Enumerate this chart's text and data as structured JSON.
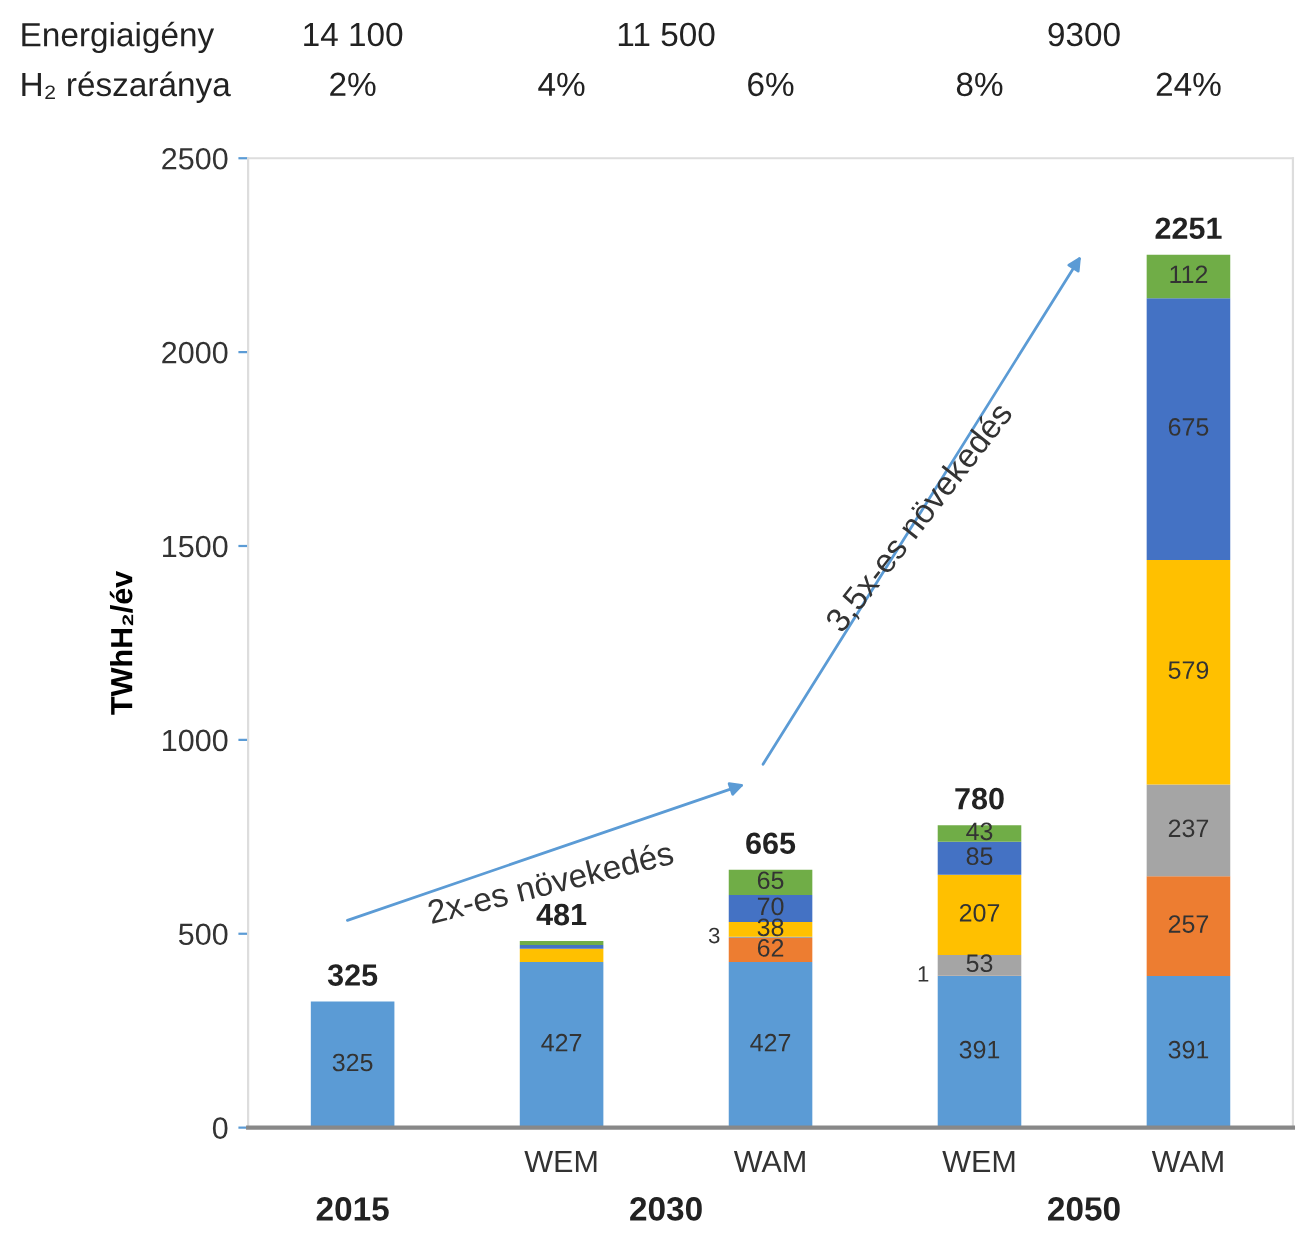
{
  "chart_data": {
    "type": "bar",
    "stacked": true,
    "categories": [
      null,
      "WEM",
      "WAM",
      "WEM",
      "WAM"
    ],
    "ylabel": "TWhH₂/év",
    "ylim": [
      0,
      2500
    ],
    "yticks": [
      0,
      500,
      1000,
      1500,
      2000,
      2500
    ],
    "grid": false,
    "legend": false,
    "series": [
      {
        "color": "#5b9bd5",
        "values": [
          325,
          427,
          427,
          391,
          391
        ],
        "value_labels": [
          "325",
          "427",
          "427",
          "391",
          "391"
        ]
      },
      {
        "color": "#ed7d31",
        "values": [
          null,
          null,
          62,
          1,
          257
        ],
        "value_labels": [
          null,
          null,
          "62",
          "1",
          "257"
        ]
      },
      {
        "color": "#a5a5a5",
        "values": [
          null,
          null,
          3,
          53,
          237
        ],
        "value_labels": [
          null,
          null,
          "3",
          "53",
          "237"
        ]
      },
      {
        "color": "#ffc000",
        "values": [
          null,
          34,
          38,
          207,
          579
        ],
        "value_labels": [
          null,
          null,
          "38",
          "207",
          "579"
        ]
      },
      {
        "color": "#4472c4",
        "values": [
          null,
          10,
          70,
          85,
          675
        ],
        "value_labels": [
          null,
          null,
          "70",
          "85",
          "675"
        ]
      },
      {
        "color": "#70ad47",
        "values": [
          null,
          10,
          65,
          43,
          112
        ],
        "value_labels": [
          null,
          null,
          "65",
          "43",
          "112"
        ]
      }
    ],
    "totals": [
      "325",
      "481",
      "665",
      "780",
      "2251"
    ],
    "annotations": [
      "Energiaigény",
      "14 100",
      "11 500",
      "9300",
      "H₂ részaránya",
      "2%",
      "4%",
      "6%",
      "8%",
      "24%",
      "2015",
      "2030",
      "2050",
      "2x-es növekedés",
      "3,5x-es növekedés"
    ]
  }
}
